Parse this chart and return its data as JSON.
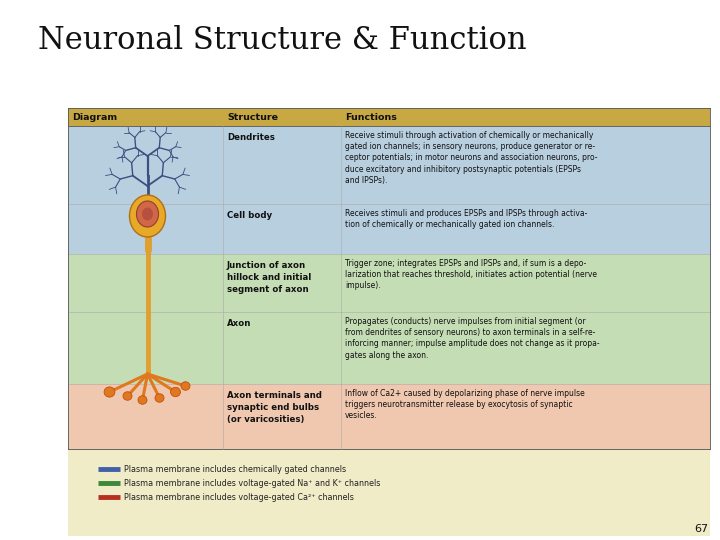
{
  "title": "Neuronal Structure & Function",
  "title_fontsize": 22,
  "page_number": "67",
  "background_color": "#ffffff",
  "header_bg": "#c8a842",
  "header_labels": [
    "Diagram",
    "Structure",
    "Functions"
  ],
  "rows": [
    {
      "structure": "Dendrites",
      "bg": "#b8cfe0",
      "function_text": "Receive stimuli through activation of chemically or mechanically\ngated ion channels; in sensory neurons, produce generator or re-\nceptor potentials; in motor neurons and association neurons, pro-\nduce excitatory and inhibitory postsynaptic potentials (EPSPs\nand IPSPs)."
    },
    {
      "structure": "Cell body",
      "bg": "#b8cfe0",
      "function_text": "Receives stimuli and produces EPSPs and IPSPs through activa-\ntion of chemically or mechanically gated ion channels."
    },
    {
      "structure": "Junction of axon\nhillock and initial\nsegment of axon",
      "bg": "#c5ddb5",
      "function_text": "Trigger zone; integrates EPSPs and IPSPs and, if sum is a depo-\nlarization that reaches threshold, initiates action potential (nerve\nimpulse)."
    },
    {
      "structure": "Axon",
      "bg": "#c5ddb5",
      "function_text": "Propagates (conducts) nerve impulses from initial segment (or\nfrom dendrites of sensory neurons) to axon terminals in a self-re-\ninforcing manner; impulse amplitude does not change as it propa-\ngates along the axon."
    },
    {
      "structure": "Axon terminals and\nsynaptic end bulbs\n(or varicosities)",
      "bg": "#f0c8b0",
      "function_text": "Inflow of Ca2+ caused by depolarizing phase of nerve impulse\ntriggers neurotransmitter release by exocytosis of synaptic\nvesicles."
    }
  ],
  "legend": [
    {
      "color": "#4060a8",
      "text": "Plasma membrane includes chemically gated channels"
    },
    {
      "color": "#3a8a3a",
      "text": "Plasma membrane includes voltage-gated Na⁺ and K⁺ channels"
    },
    {
      "color": "#b83020",
      "text": "Plasma membrane includes voltage-gated Ca²⁺ channels"
    }
  ],
  "footer_bg": "#f0ecc8"
}
